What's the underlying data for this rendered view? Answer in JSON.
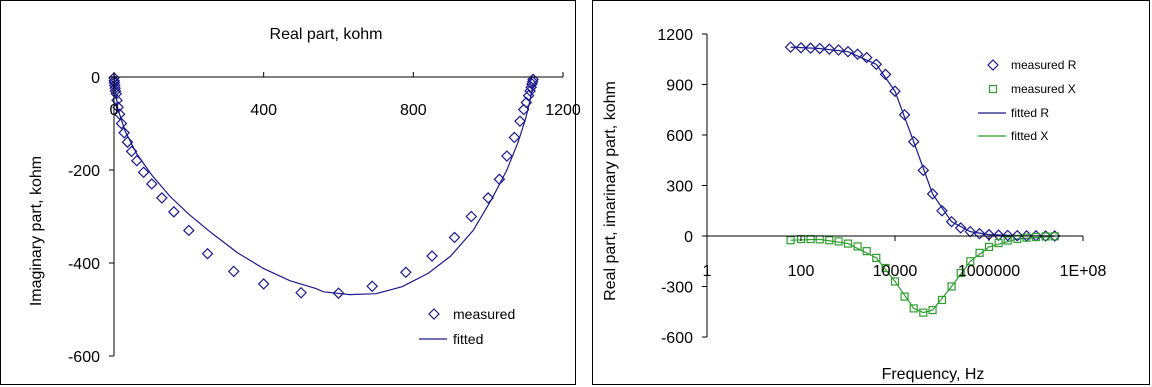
{
  "chart_data": [
    {
      "type": "scatter",
      "title": "",
      "xlabel": "Real part, kohm",
      "ylabel": "Imaginary part, kohm",
      "xlim": [
        0,
        1200
      ],
      "ylim": [
        -600,
        0
      ],
      "x_ticks": [
        "0",
        "400",
        "800",
        "1200"
      ],
      "y_ticks": [
        "0",
        "-200",
        "-400",
        "-600"
      ],
      "legend": [
        "measured",
        "fitted"
      ],
      "legend_position": "bottom-right",
      "colors": {
        "markers": "#1a1a8c",
        "line": "#1a1a8c"
      },
      "series": [
        {
          "name": "measured",
          "x": [
            0,
            0.5,
            1,
            2,
            3,
            4,
            6,
            8,
            11,
            15,
            20,
            27,
            36,
            47,
            61,
            79,
            101,
            128,
            160,
            200,
            250,
            320,
            400,
            500,
            600,
            690,
            780,
            850,
            910,
            955,
            1000,
            1030,
            1050,
            1070,
            1085,
            1095,
            1102,
            1108,
            1112,
            1115,
            1117,
            1119,
            1120
          ],
          "y": [
            -2,
            -8,
            -12,
            -18,
            -24,
            -30,
            -36,
            -50,
            -65,
            -80,
            -100,
            -120,
            -140,
            -160,
            -180,
            -205,
            -230,
            -260,
            -290,
            -330,
            -380,
            -418,
            -445,
            -464,
            -465,
            -450,
            -420,
            -385,
            -345,
            -300,
            -260,
            -220,
            -170,
            -130,
            -95,
            -70,
            -55,
            -40,
            -30,
            -22,
            -15,
            -10,
            -5
          ]
        },
        {
          "name": "fitted",
          "x": [
            0,
            10,
            30,
            60,
            100,
            150,
            200,
            260,
            330,
            400,
            470,
            540,
            560,
            630,
            700,
            770,
            840,
            900,
            960,
            1010,
            1050,
            1080,
            1100,
            1112,
            1120
          ],
          "y": [
            0,
            -68,
            -117,
            -164,
            -210,
            -257,
            -295,
            -335,
            -378,
            -412,
            -438,
            -455,
            -462,
            -468,
            -466,
            -451,
            -422,
            -385,
            -330,
            -262,
            -200,
            -140,
            -90,
            -50,
            -15
          ]
        }
      ]
    },
    {
      "type": "scatter",
      "title": "",
      "xlabel": "Frequency, Hz",
      "ylabel": "Real part, imarinary part, kohm",
      "x_scale": "log",
      "xlim": [
        1,
        100000000
      ],
      "ylim": [
        -600,
        1200
      ],
      "x_ticks": [
        "1",
        "100",
        "10000",
        "1000000",
        "1E+08"
      ],
      "y_ticks": [
        "1200",
        "900",
        "600",
        "300",
        "0",
        "-300",
        "-600"
      ],
      "legend": [
        "measured R",
        "measured X",
        "fitted R",
        "fitted X"
      ],
      "legend_position": "top-right",
      "colors": {
        "R": "#1a1a8c",
        "X": "#2e9e2e"
      },
      "series": [
        {
          "name": "measured R",
          "x": [
            60,
            100,
            160,
            250,
            400,
            630,
            1000,
            1600,
            2500,
            4000,
            6300,
            10000,
            16000,
            25000,
            40000,
            63000,
            100000,
            160000,
            250000,
            400000,
            630000,
            1000000,
            1600000,
            2500000,
            4000000,
            6300000,
            10000000,
            16000000,
            25000000
          ],
          "y": [
            1122,
            1118,
            1116,
            1114,
            1110,
            1105,
            1095,
            1080,
            1060,
            1020,
            960,
            860,
            720,
            560,
            390,
            250,
            150,
            85,
            48,
            26,
            14,
            8,
            5,
            3,
            2,
            1,
            1,
            0,
            0
          ]
        },
        {
          "name": "measured X",
          "x": [
            60,
            100,
            160,
            250,
            400,
            630,
            1000,
            1600,
            2500,
            4000,
            6300,
            10000,
            16000,
            25000,
            40000,
            63000,
            100000,
            160000,
            250000,
            400000,
            630000,
            1000000,
            1600000,
            2500000,
            4000000,
            6300000,
            10000000,
            16000000,
            25000000
          ],
          "y": [
            -25,
            -18,
            -18,
            -20,
            -25,
            -32,
            -45,
            -62,
            -90,
            -130,
            -190,
            -270,
            -360,
            -430,
            -455,
            -440,
            -380,
            -300,
            -220,
            -150,
            -100,
            -65,
            -42,
            -27,
            -17,
            -10,
            -6,
            -3,
            -2
          ]
        },
        {
          "name": "fitted R",
          "x": [
            60,
            250,
            1000,
            4000,
            10000,
            25000,
            63000,
            160000,
            400000,
            1000000,
            4000000,
            25000000
          ],
          "y": [
            1122,
            1114,
            1095,
            1020,
            860,
            560,
            250,
            85,
            26,
            8,
            2,
            0
          ]
        },
        {
          "name": "fitted X",
          "x": [
            60,
            250,
            1000,
            4000,
            10000,
            25000,
            40000,
            63000,
            160000,
            400000,
            1000000,
            4000000,
            25000000
          ],
          "y": [
            -25,
            -20,
            -45,
            -130,
            -270,
            -430,
            -455,
            -440,
            -300,
            -150,
            -65,
            -17,
            -2
          ]
        }
      ]
    }
  ]
}
